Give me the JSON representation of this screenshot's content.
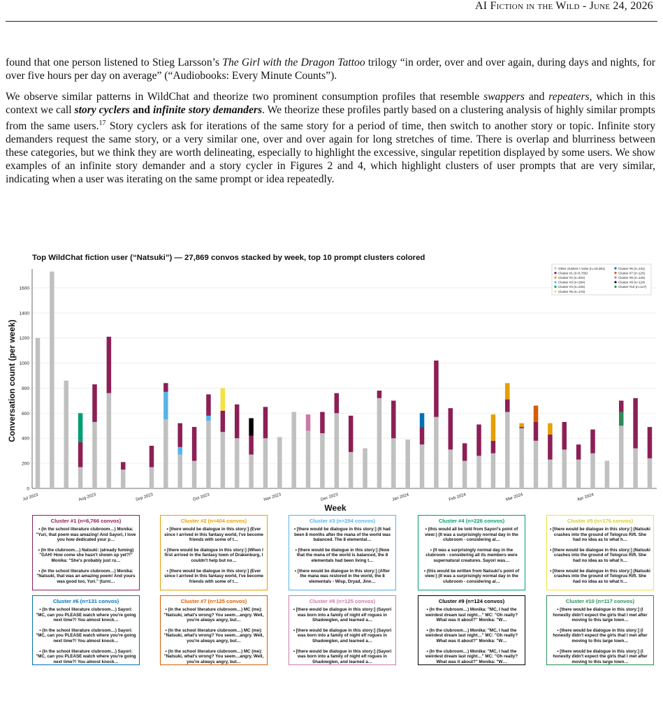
{
  "header": {
    "title": "AI Fiction in the Wild",
    "date": "June 24, 2026"
  },
  "paragraphs": {
    "p1": {
      "a": "found that one person listened to Stieg Larsson’s ",
      "b": "The Girl with the Dragon Tattoo",
      "c": " trilogy “in order, over and over again, during days and nights, for over five hours per day on average” (“Audiobooks: Every Minute Counts”)."
    },
    "p2": {
      "a": "We observe similar patterns in WildChat and theorize two prominent consumption profiles that resemble ",
      "b": "swappers",
      "c": " and ",
      "d": "repeaters",
      "e": ", which in this context we call ",
      "f": "story cyclers",
      "g": " and ",
      "h": "infinite story demanders",
      "i": ". We theorize these profiles partly based on a clustering analysis of highly similar prompts from the same users.",
      "sup": "17",
      "j": " Story cyclers ask for iterations of the same story for a period of time, then switch to another story or topic. Infinite story demanders request the same story, or a very similar one, over and over again for long stretches of time. There is overlap and blurriness between these categories, but we think they are worth delineating, especially to highlight the excessive, singular repetition displayed by some users. We show examples of an infinite story demander and a story cycler in Figures 2 and 4, which highlight clusters of user prompts that are very similar, indicating when a user was iterating on the same prompt or idea repeatedly."
    }
  },
  "chart_data": {
    "type": "bar",
    "title": "Top WildChat fiction user (“Natsuki”) — 27,869 convos stacked by week, top 10 prompt clusters colored",
    "xlabel": "Week",
    "ylabel": "Conversation count (per week)",
    "ylim": [
      0,
      1750
    ],
    "yticks": [
      0,
      200,
      400,
      600,
      800,
      1000,
      1200,
      1400,
      1600
    ],
    "xticks": [
      "Jul 2023",
      "Aug 2023",
      "Sep 2023",
      "Oct 2023",
      "Nov 2023",
      "Dec 2023",
      "Jan 2024",
      "Feb 2024",
      "Mar 2024",
      "Apr 2024"
    ],
    "grid": true,
    "legend_position": "top-right",
    "colors": {
      "noise": "#c0c0c0",
      "c1": "#8c1f56",
      "c2": "#e69f00",
      "c3": "#56b4e9",
      "c4": "#009e73",
      "c5": "#f0e442",
      "c6": "#0072b2",
      "c7": "#d55e00",
      "c8": "#cc79a7",
      "c9": "#000000",
      "c10": "#2e8b57"
    },
    "legend": [
      {
        "key": "noise",
        "label": "Other clusters / noise (n=19,381)"
      },
      {
        "key": "c1",
        "label": "Cluster #1  (n=6,766)"
      },
      {
        "key": "c2",
        "label": "Cluster #2  (n=404)"
      },
      {
        "key": "c3",
        "label": "Cluster #3  (n=294)"
      },
      {
        "key": "c4",
        "label": "Cluster #4  (n=226)"
      },
      {
        "key": "c5",
        "label": "Cluster #5  (n=176)"
      },
      {
        "key": "c6",
        "label": "Cluster #6  (n=131)"
      },
      {
        "key": "c7",
        "label": "Cluster #7  (n=125)"
      },
      {
        "key": "c8",
        "label": "Cluster #8  (n=125)"
      },
      {
        "key": "c9",
        "label": "Cluster #9  (n=124)"
      },
      {
        "key": "c10",
        "label": "Cluster #10  (n=117)"
      }
    ],
    "weeks": [
      {
        "noise": 1200
      },
      {
        "noise": 1730
      },
      {
        "noise": 860
      },
      {
        "noise": 170,
        "c1": 200,
        "c4": 230
      },
      {
        "noise": 530,
        "c1": 300
      },
      {
        "noise": 760,
        "c1": 450
      },
      {
        "noise": 150,
        "c1": 60
      },
      {},
      {
        "noise": 170,
        "c1": 170
      },
      {
        "noise": 550,
        "c3": 220,
        "c1": 70
      },
      {
        "noise": 270,
        "c3": 60,
        "c1": 190
      },
      {
        "noise": 220,
        "c1": 270
      },
      {
        "noise": 540,
        "c3": 40,
        "c1": 170
      },
      {
        "noise": 450,
        "c1": 170,
        "c5": 180
      },
      {
        "noise": 400,
        "c1": 270
      },
      {
        "noise": 270,
        "c1": 150,
        "c9": 140
      },
      {
        "noise": 400,
        "c1": 250
      },
      {
        "noise": 410
      },
      {
        "noise": 610
      },
      {
        "noise": 460,
        "c8": 130
      },
      {
        "noise": 440,
        "c1": 170
      },
      {
        "noise": 600,
        "c1": 160
      },
      {
        "noise": 290,
        "c1": 290
      },
      {
        "noise": 320
      },
      {
        "noise": 720,
        "c1": 60
      },
      {
        "noise": 400,
        "c1": 300
      },
      {
        "noise": 390
      },
      {
        "noise": 350,
        "c1": 140,
        "c6": 110
      },
      {
        "noise": 570,
        "c1": 450
      },
      {
        "noise": 310,
        "c1": 330
      },
      {
        "noise": 220,
        "c1": 140
      },
      {
        "noise": 260,
        "c1": 250
      },
      {
        "noise": 280,
        "c1": 100,
        "c2": 210
      },
      {
        "noise": 610,
        "c1": 100,
        "c2": 130
      },
      {
        "noise": 480,
        "c1": 10,
        "c2": 30
      },
      {
        "noise": 380,
        "c1": 150,
        "c7": 130
      },
      {
        "noise": 230,
        "c1": 200,
        "c2": 90
      },
      {
        "noise": 310,
        "c1": 220
      },
      {
        "noise": 230,
        "c1": 120
      },
      {
        "noise": 280,
        "c1": 190
      },
      {
        "noise": 220
      },
      {
        "noise": 500,
        "c10": 110,
        "c1": 90
      },
      {
        "noise": 320,
        "c1": 400
      },
      {
        "noise": 240,
        "c1": 250
      }
    ]
  },
  "clusters": [
    {
      "title": "Cluster #1  (n=6,766 convos)",
      "color": "#8c1f56",
      "samples": [
        "• (In the school literature clubroom…) Monika: \"Yuri, that poem was amazing! And Sayori, I love you how dedicated your p…",
        "• (In the clubroom…) Natsuki: (already fuming) \"GAH! How come she hasn't shown up yet?!\" Monika: \"She's probably just ru…",
        "• (In the school literature clubroom…) Monika: \"Natsuki, that was an amazing poem! And yours was good too, Yuri.\" (turni…"
      ]
    },
    {
      "title": "Cluster #2  (n=404 convos)",
      "color": "#e69f00",
      "samples": [
        "• [there would be dialogue in this story:] (Ever since I arrived in this fantasy world, I've become friends with some of t…",
        "• [there would be dialogue in this story:] (When I first arrived in the fantasy town of Drakenburg, I couldn't help but no…",
        "• [there would be dialogue in this story:] (Ever since I arrived in this fantasy world, I've become friends with some of t…"
      ]
    },
    {
      "title": "Cluster #3  (n=294 convos)",
      "color": "#56b4e9",
      "samples": [
        "• [there would be dialogue in this story:] (It had been 8 months after the mana of the world was balanced. The 8 elemental…",
        "• [there would be dialogue in this story:] (Now that the mana of the world is balanced, the 8 elementals had been living t…",
        "• [there would be dialogue in this story:] (After the mana was restored in the world, the 8 elementals - Wisp, Dryad, Jinn…"
      ]
    },
    {
      "title": "Cluster #4  (n=226 convos)",
      "color": "#009e73",
      "samples": [
        "• (this would all be told from Sayori's point of view:) (It was a surprisingly normal day in the clubroom - considering al…",
        "• (It was a surprisingly normal day in the clubroom - considering all its members were supernatural creatures. Sayori was…",
        "• (this would be written from Natsuki's point of view:) (It was a surprisingly normal day in the clubroom - considering al…"
      ]
    },
    {
      "title": "Cluster #5  (n=176 convos)",
      "color": "#f0e442",
      "samples": [
        "• [there would be dialogue in this story:] (Natsuki crashes into the ground of Telogrus Rift. She had no idea as to what h…",
        "• [there would be dialogue in this story:] (Natsuki crashes into the ground of Telogrus Rift. She had no idea as to what h…",
        "• [there would be dialogue in this story:] (Natsuki crashes into the ground of Telogrus Rift. She had no idea as to what h…"
      ]
    },
    {
      "title": "Cluster #6  (n=131 convos)",
      "color": "#0072b2",
      "samples": [
        "• (In the school literature clubroom…) Sayori: \"MC, can you PLEASE watch where you're going next time?! You almost knock…",
        "• (In the school literature clubroom…) Sayori: \"MC, can you PLEASE watch where you're going next time?! You almost knock…",
        "• (In the school literature clubroom…) Sayori: \"MC, can you PLEASE watch where you're going next time?! You almost knock…"
      ]
    },
    {
      "title": "Cluster #7  (n=125 convos)",
      "color": "#d55e00",
      "samples": [
        "• (In the school literature clubroom…) MC (me): \"Natsuki, what's wrong? You seem…angry. Well, you're always angry, but…",
        "• (In the school literature clubroom…) MC (me): \"Natsuki, what's wrong? You seem…angry. Well, you're always angry, but…",
        "• (In the school literature clubroom…) MC (me): \"Natsuki, what's wrong? You seem…angry. Well, you're always angry, but…"
      ]
    },
    {
      "title": "Cluster #8  (n=125 convos)",
      "color": "#cc79a7",
      "samples": [
        "• [there would be dialogue in this story:] (Sayori was born into a family of night elf rogues in Shadowglen, and learned a…",
        "• [there would be dialogue in this story:] (Sayori was born into a family of night elf rogues in Shadowglen, and learned a…",
        "• [there would be dialogue in this story:] (Sayori was born into a family of night elf rogues in Shadowglen, and learned a…"
      ]
    },
    {
      "title": "Cluster #9  (n=124 convos)",
      "color": "#000000",
      "samples": [
        "• (In the clubroom…) Monika: \"MC, I had the weirdest dream last night…\" MC: \"Oh really? What was it about?\" Monika: \"W…",
        "• (In the clubroom…) Monika: \"MC, I had the weirdest dream last night…\" MC: \"Oh really? What was it about?\" Monika: \"W…",
        "• (In the clubroom…) Monika: \"MC, I had the weirdest dream last night…\" MC: \"Oh really? What was it about?\" Monika: \"W…"
      ]
    },
    {
      "title": "Cluster #10  (n=117 convos)",
      "color": "#2e8b57",
      "samples": [
        "• [there would be dialogue in this story:] (I honestly didn't expect the girls that I met after moving to this large town…",
        "• [there would be dialogue in this story:] (I honestly didn't expect the girls that I met after moving to this large town…",
        "• [there would be dialogue in this story:] (I honestly didn't expect the girls that I met after moving to this large town…"
      ]
    }
  ]
}
